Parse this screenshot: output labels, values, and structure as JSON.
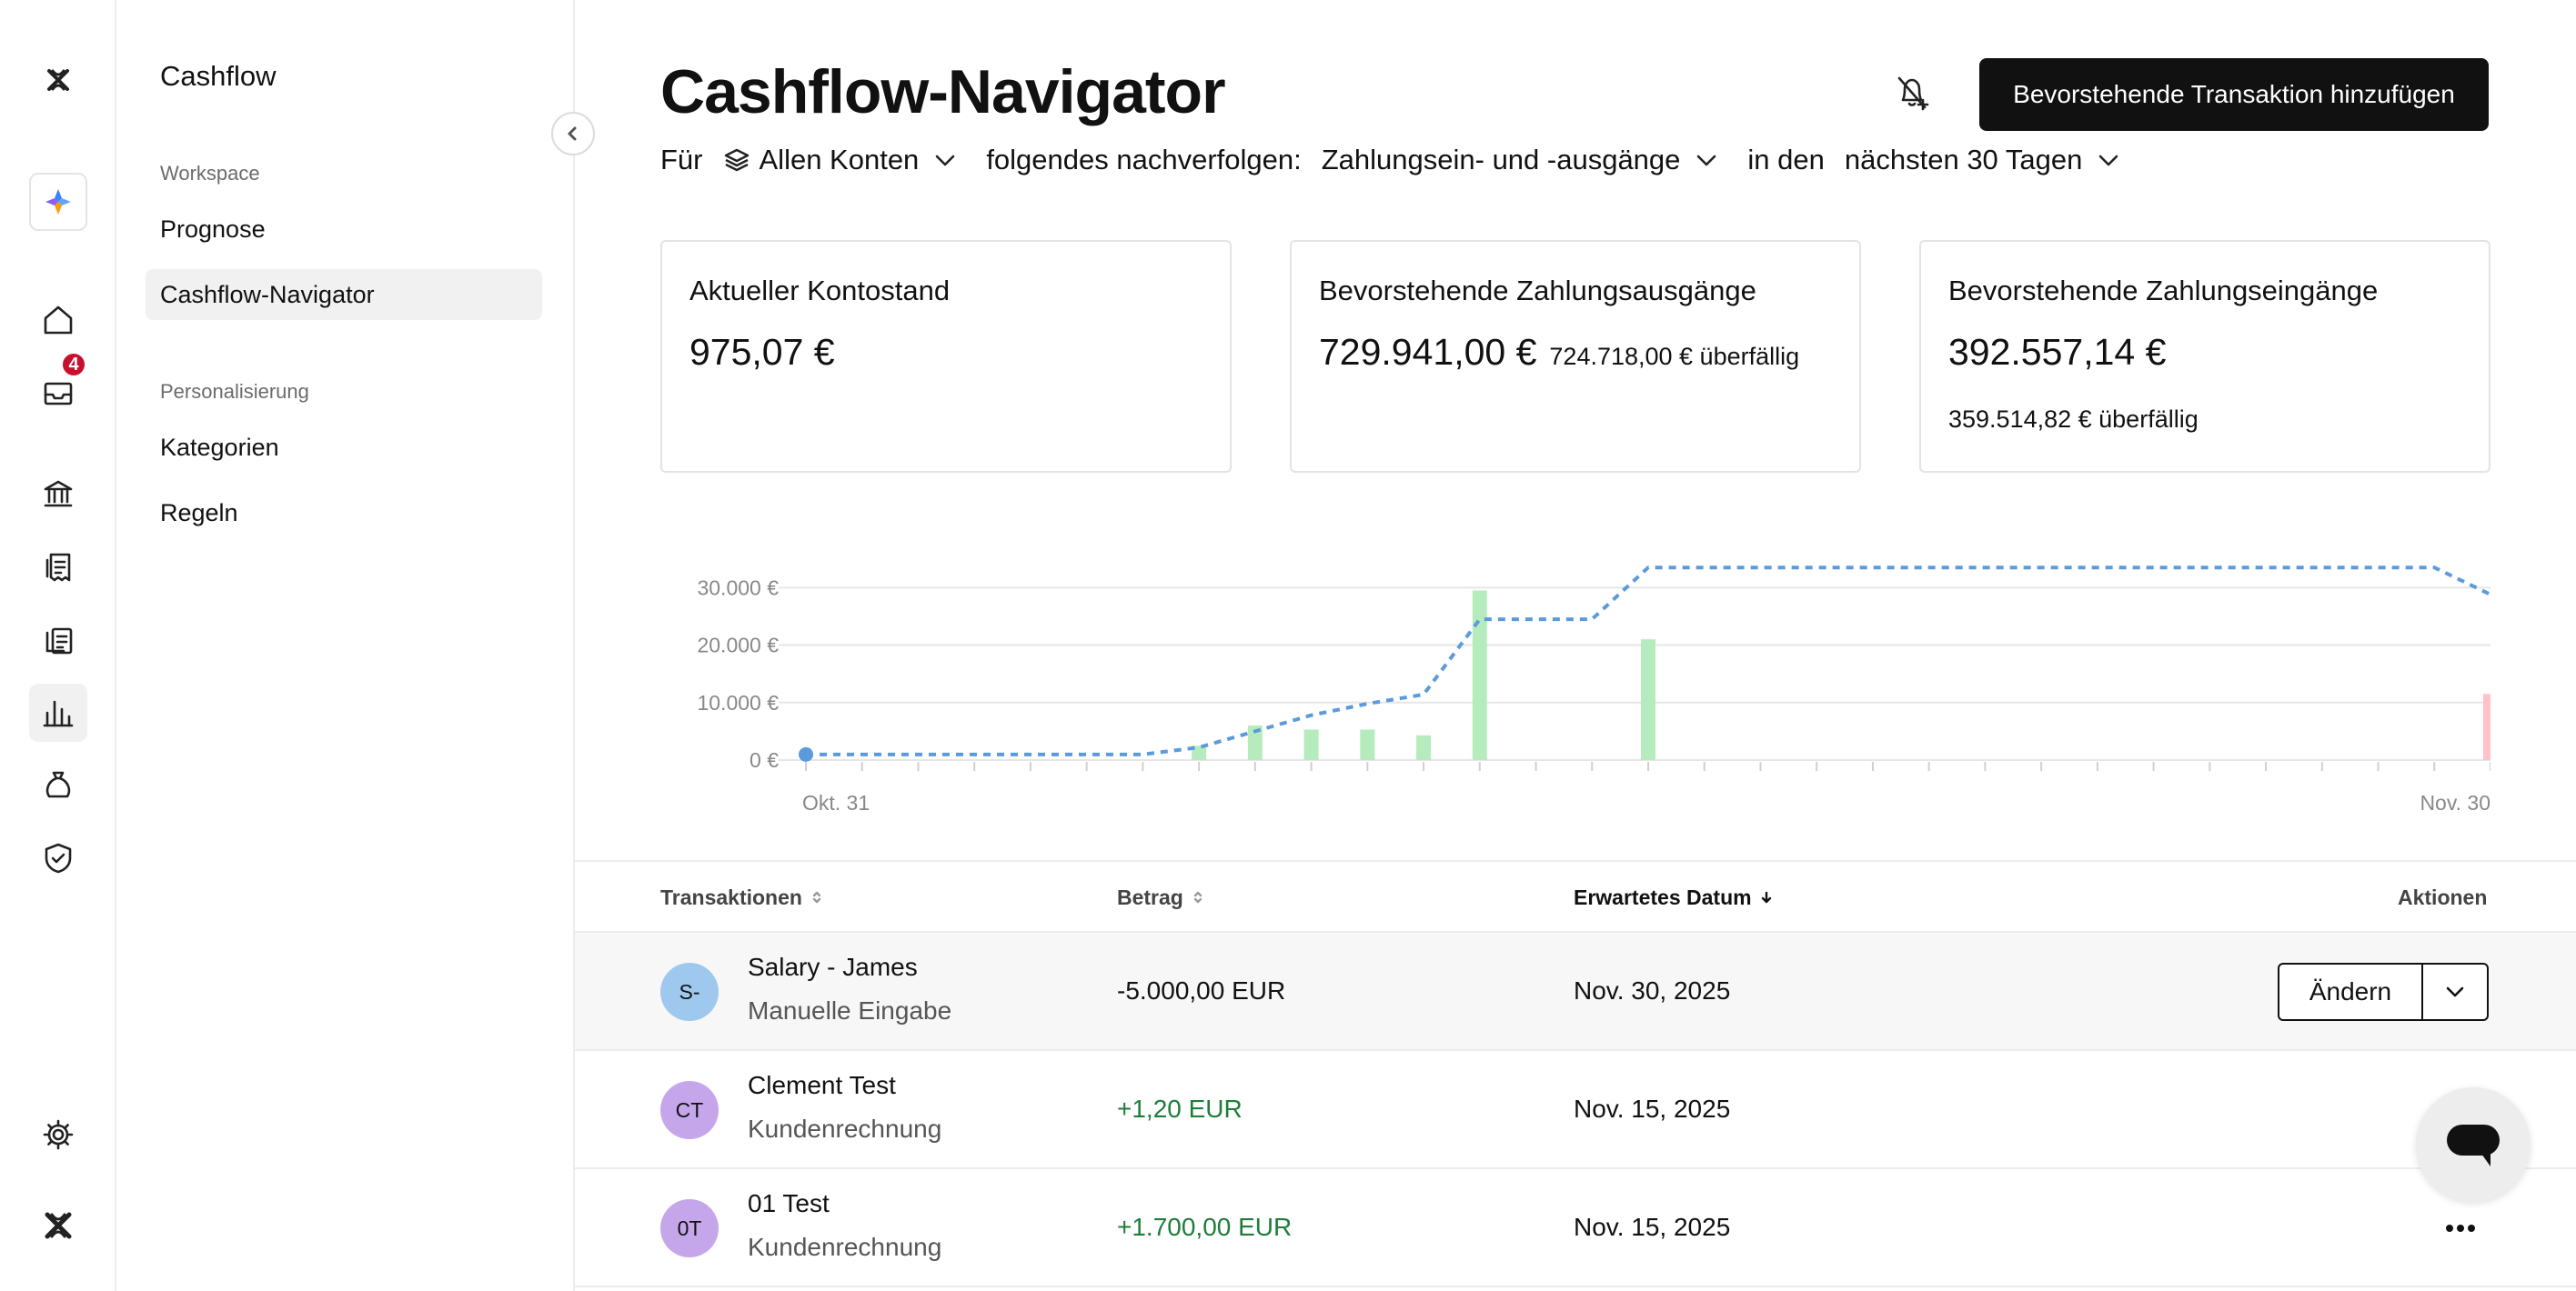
{
  "app": {
    "section_title": "Cashflow"
  },
  "rail": {
    "inbox_badge": "4"
  },
  "sidebar": {
    "groups": [
      {
        "label": "Workspace",
        "items": [
          {
            "label": "Prognose",
            "selected": false
          },
          {
            "label": "Cashflow-Navigator",
            "selected": true
          }
        ]
      },
      {
        "label": "Personalisierung",
        "items": [
          {
            "label": "Kategorien",
            "selected": false
          },
          {
            "label": "Regeln",
            "selected": false
          }
        ]
      }
    ]
  },
  "header": {
    "title": "Cashflow-Navigator",
    "primary_button": "Bevorstehende Transaktion hinzufügen"
  },
  "filters": {
    "prefix": "Für",
    "accounts_value": "Allen Konten",
    "track_label": "folgendes nachverfolgen:",
    "track_value": "Zahlungsein- und -ausgänge",
    "period_label": "in den",
    "period_value": "nächsten 30 Tagen"
  },
  "cards": {
    "balance": {
      "label": "Aktueller Kontostand",
      "value": "975,07 €"
    },
    "outgoing": {
      "label": "Bevorstehende Zahlungsausgänge",
      "value": "729.941,00 €",
      "overdue": "724.718,00 € überfällig"
    },
    "incoming": {
      "label": "Bevorstehende Zahlungseingänge",
      "value": "392.557,14 €",
      "overdue": "359.514,82 € überfällig"
    }
  },
  "chart_data": {
    "type": "bar",
    "x_start_label": "Okt. 31",
    "x_end_label": "Nov. 30",
    "y_ticks": [
      "30.000 €",
      "20.000 €",
      "10.000 €",
      "0 €"
    ],
    "y_tick_values": [
      30000,
      20000,
      10000,
      0
    ],
    "ylim": [
      0,
      31000
    ],
    "days": 31,
    "colors": {
      "inflow": "#b6ecbd",
      "outflow": "#ffc2c8",
      "balance_line": "#5b9bdc",
      "grid": "#e6e6e6"
    },
    "inflows": [
      {
        "day": 7,
        "value": 2500
      },
      {
        "day": 8,
        "value": 6000
      },
      {
        "day": 9,
        "value": 5300
      },
      {
        "day": 10,
        "value": 5300
      },
      {
        "day": 11,
        "value": 4300
      },
      {
        "day": 12,
        "value": 29500
      },
      {
        "day": 15,
        "value": 21000
      }
    ],
    "outflows": [
      {
        "day": 30,
        "value": 11500
      }
    ],
    "balance_series": [
      {
        "day": 0,
        "value": 975
      },
      {
        "day": 6,
        "value": 975
      },
      {
        "day": 7,
        "value": 2200
      },
      {
        "day": 8,
        "value": 5000
      },
      {
        "day": 9,
        "value": 7800
      },
      {
        "day": 10,
        "value": 9800
      },
      {
        "day": 11,
        "value": 11400
      },
      {
        "day": 12,
        "value": 24500
      },
      {
        "day": 14,
        "value": 24500
      },
      {
        "day": 15,
        "value": 33500
      },
      {
        "day": 29,
        "value": 33500
      },
      {
        "day": 30,
        "value": 28800
      }
    ]
  },
  "table": {
    "columns": {
      "transactions": "Transaktionen",
      "amount": "Betrag",
      "date": "Erwartetes Datum",
      "actions": "Aktionen"
    },
    "rows": [
      {
        "initials": "S-",
        "avatar_color": "#9ec8ee",
        "name": "Salary - James",
        "type": "Manuelle Eingabe",
        "amount": "-5.000,00 EUR",
        "positive": false,
        "date": "Nov. 30, 2025",
        "action": "Ändern"
      },
      {
        "initials": "CT",
        "avatar_color": "#c6a6ea",
        "name": "Clement Test",
        "type": "Kundenrechnung",
        "amount": "+1,20 EUR",
        "positive": true,
        "date": "Nov. 15, 2025",
        "action": ""
      },
      {
        "initials": "0T",
        "avatar_color": "#c6a6ea",
        "name": "01 Test",
        "type": "Kundenrechnung",
        "amount": "+1.700,00 EUR",
        "positive": true,
        "date": "Nov. 15, 2025",
        "action": "more"
      }
    ]
  }
}
